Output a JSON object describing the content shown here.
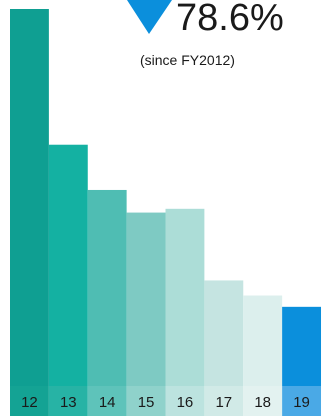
{
  "chart_data": {
    "type": "bar",
    "categories": [
      "12",
      "13",
      "14",
      "15",
      "16",
      "17",
      "18",
      "19"
    ],
    "values": [
      100,
      64,
      52,
      46,
      47,
      28,
      24,
      21
    ],
    "ylim": [
      0,
      100
    ],
    "colors": [
      "#0f9f92",
      "#14b1a2",
      "#4fbdb3",
      "#7ecac3",
      "#acddd7",
      "#c5e4e1",
      "#dcefed",
      "#0b8fdc"
    ],
    "label_band_colors": [
      "#14a394",
      "#27b3a5",
      "#5ec3ba",
      "#8fd2cb",
      "#bce3df",
      "#d1eae7",
      "#e3f2f0",
      "#4aa9e6"
    ],
    "annotation": {
      "value": "78.6%",
      "note": "(since FY2012)",
      "arrow_color": "#0b8fdc",
      "icon": "down-triangle-icon"
    },
    "grid": false,
    "legend": "none"
  }
}
